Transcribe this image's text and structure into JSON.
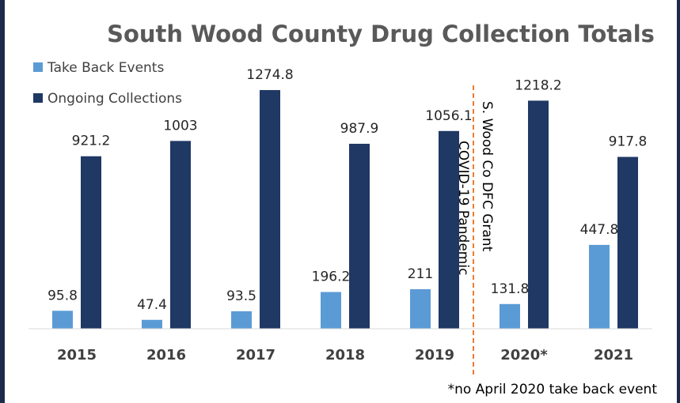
{
  "chart_data": {
    "type": "bar",
    "title": "South Wood County Drug Collection Totals",
    "categories": [
      "2015",
      "2016",
      "2017",
      "2018",
      "2019",
      "2020*",
      "2021"
    ],
    "series": [
      {
        "name": "Take Back Events",
        "color": "#5b9bd5",
        "values": [
          95.8,
          47.4,
          93.5,
          196.2,
          211,
          131.8,
          447.8
        ],
        "labels": [
          "95.8",
          "47.4",
          "93.5",
          "196.2",
          "211",
          "131.8",
          "447.8"
        ]
      },
      {
        "name": "Ongoing Collections",
        "color": "#1f3864",
        "values": [
          921.2,
          1003,
          1274.8,
          987.9,
          1056.1,
          1218.2,
          917.8
        ],
        "labels": [
          "921.2",
          "1003",
          "1274.8",
          "987.9",
          "1056.1",
          "1218.2",
          "917.8"
        ]
      }
    ],
    "ylim": [
      0,
      1300
    ],
    "grid": false,
    "legend_position": "top-left",
    "annotations": [
      {
        "text": "COVID-19 Pandemic"
      },
      {
        "text": "S. Wood Co DFC Grant"
      }
    ],
    "divider": {
      "between": [
        "2019",
        "2020*"
      ],
      "color": "#ed7d31",
      "style": "dashed"
    },
    "footnote": "*no April 2020 take back event"
  }
}
